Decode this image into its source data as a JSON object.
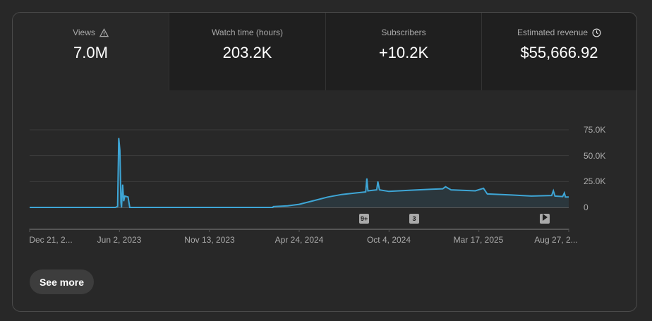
{
  "metrics": [
    {
      "label": "Views",
      "value": "7.0M",
      "icon": "warning-icon"
    },
    {
      "label": "Watch time (hours)",
      "value": "203.2K"
    },
    {
      "label": "Subscribers",
      "value": "+10.2K"
    },
    {
      "label": "Estimated revenue",
      "value": "$55,666.92",
      "icon": "clock-icon"
    }
  ],
  "markers": [
    {
      "label": "9+"
    },
    {
      "label": "3"
    },
    {
      "label": "",
      "icon": "play-icon"
    }
  ],
  "see_more_label": "See more",
  "colors": {
    "line": "#3ea6d6",
    "fill": "#2b373d",
    "accent_text": "#aaaaaa"
  },
  "chart_data": {
    "type": "area",
    "y_tick_labels": [
      "75.0K",
      "50.0K",
      "25.0K",
      "0"
    ],
    "y_ticks": [
      75000,
      50000,
      25000,
      0
    ],
    "ylim": [
      0,
      75000
    ],
    "x_tick_labels": [
      "Dec 21, 2...",
      "Jun 2, 2023",
      "Nov 13, 2023",
      "Apr 24, 2024",
      "Oct 4, 2024",
      "Mar 17, 2025",
      "Aug 27, 2..."
    ],
    "x_range": [
      "2022-12-21",
      "2025-08-27"
    ],
    "grid": true,
    "series": [
      {
        "points": [
          [
            "2022-12-21",
            0
          ],
          [
            "2023-05-26",
            0
          ],
          [
            "2023-05-30",
            1000
          ],
          [
            "2023-06-01",
            67000
          ],
          [
            "2023-06-03",
            55000
          ],
          [
            "2023-06-05",
            5000
          ],
          [
            "2023-06-06",
            0
          ],
          [
            "2023-06-08",
            22000
          ],
          [
            "2023-06-10",
            6000
          ],
          [
            "2023-06-12",
            11000
          ],
          [
            "2023-06-18",
            10000
          ],
          [
            "2023-06-21",
            0
          ],
          [
            "2024-03-07",
            0
          ],
          [
            "2024-03-08",
            800
          ],
          [
            "2024-04-03",
            1500
          ],
          [
            "2024-04-24",
            3000
          ],
          [
            "2024-05-20",
            6500
          ],
          [
            "2024-06-15",
            10000
          ],
          [
            "2024-07-10",
            12500
          ],
          [
            "2024-08-05",
            14000
          ],
          [
            "2024-08-23",
            15000
          ],
          [
            "2024-08-25",
            28000
          ],
          [
            "2024-08-27",
            16000
          ],
          [
            "2024-09-12",
            17000
          ],
          [
            "2024-09-14",
            25000
          ],
          [
            "2024-09-17",
            17000
          ],
          [
            "2024-10-04",
            15500
          ],
          [
            "2024-11-10",
            16500
          ],
          [
            "2024-12-20",
            17500
          ],
          [
            "2025-01-10",
            18000
          ],
          [
            "2025-01-15",
            20000
          ],
          [
            "2025-01-25",
            17000
          ],
          [
            "2025-03-10",
            16000
          ],
          [
            "2025-03-25",
            18500
          ],
          [
            "2025-04-01",
            13000
          ],
          [
            "2025-05-15",
            12000
          ],
          [
            "2025-06-20",
            11000
          ],
          [
            "2025-07-27",
            11500
          ],
          [
            "2025-07-30",
            16000
          ],
          [
            "2025-08-02",
            11000
          ],
          [
            "2025-08-16",
            10500
          ],
          [
            "2025-08-19",
            14000
          ],
          [
            "2025-08-21",
            10000
          ],
          [
            "2025-08-27",
            10000
          ]
        ]
      }
    ]
  }
}
